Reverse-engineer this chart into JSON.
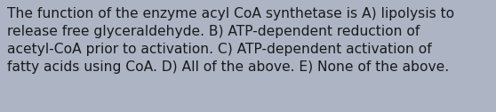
{
  "text": "The function of the enzyme acyl CoA synthetase is A) lipolysis to\nrelease free glyceraldehyde. B) ATP-dependent reduction of\nacetyl-CoA prior to activation. C) ATP-dependent activation of\nfatty acids using CoA. D) All of the above. E) None of the above.",
  "background_color": "#adb5c5",
  "text_color": "#1a1a1a",
  "font_size": 11.2,
  "fig_width": 5.58,
  "fig_height": 1.26,
  "dpi": 100
}
